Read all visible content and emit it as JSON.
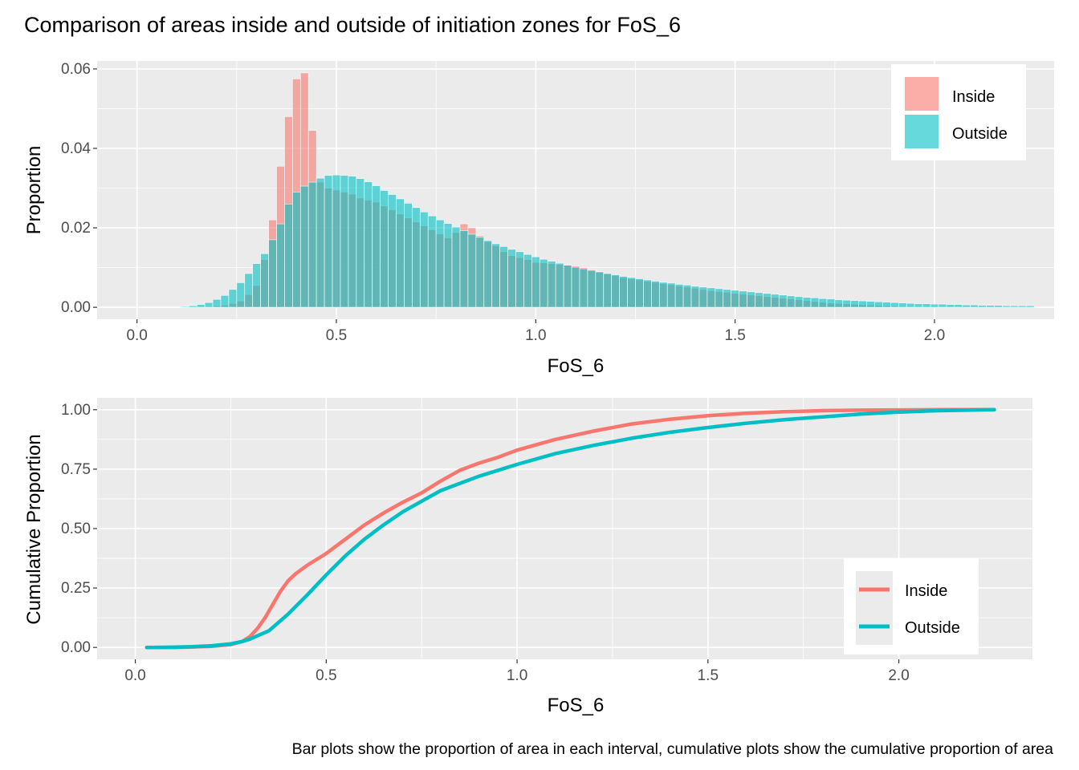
{
  "figure": {
    "title": "Comparison of areas inside and outside of initiation zones for FoS_6",
    "caption": "Bar plots show the proportion of area in each interval, cumulative plots show the cumulative proportion of area"
  },
  "colors": {
    "inside": "#F8766D",
    "outside": "#00BFC4",
    "panel": "#EBEBEB",
    "grid": "#FFFFFF"
  },
  "chart_data": [
    {
      "type": "bar",
      "xlabel": "FoS_6",
      "ylabel": "Proportion",
      "xlim": [
        -0.1,
        2.3
      ],
      "ylim": [
        -0.003,
        0.062
      ],
      "x_ticks": [
        "0.0",
        "0.5",
        "1.0",
        "1.5",
        "2.0"
      ],
      "x_tick_values": [
        0.0,
        0.5,
        1.0,
        1.5,
        2.0
      ],
      "y_ticks": [
        "0.00",
        "0.02",
        "0.04",
        "0.06"
      ],
      "y_tick_values": [
        0.0,
        0.02,
        0.04,
        0.06
      ],
      "grid": true,
      "legend_position": "top-right",
      "bin_width": 0.02,
      "bin_start": 0.11,
      "series": [
        {
          "name": "Inside",
          "color": "#F8766D",
          "values": [
            0.0,
            0.0,
            0.0,
            0.0002,
            0.0004,
            0.0006,
            0.001,
            0.0016,
            0.0032,
            0.0055,
            0.012,
            0.022,
            0.0355,
            0.048,
            0.0575,
            0.059,
            0.0445,
            0.0315,
            0.03,
            0.0295,
            0.029,
            0.0285,
            0.0275,
            0.027,
            0.0265,
            0.0255,
            0.0245,
            0.0235,
            0.0225,
            0.0215,
            0.0205,
            0.0195,
            0.0185,
            0.0175,
            0.0188,
            0.021,
            0.02,
            0.018,
            0.0165,
            0.0155,
            0.014,
            0.013,
            0.0125,
            0.012,
            0.0113,
            0.0112,
            0.011,
            0.0108,
            0.0106,
            0.0104,
            0.01,
            0.0095,
            0.009,
            0.0085,
            0.008,
            0.0075,
            0.0072,
            0.0069,
            0.0066,
            0.0063,
            0.006,
            0.0057,
            0.0054,
            0.0051,
            0.0048,
            0.0045,
            0.0042,
            0.004,
            0.0038,
            0.0035,
            0.0033,
            0.0031,
            0.0029,
            0.0027,
            0.0025,
            0.0023,
            0.0021,
            0.0019,
            0.0017,
            0.0015,
            0.0013,
            0.0011,
            0.001,
            0.0009,
            0.0008,
            0.0007,
            0.0006,
            0.0005,
            0.0004,
            0.0003,
            0.0002,
            0.0002,
            0.0001,
            0.0001,
            0.0001,
            0.0001,
            0.0001,
            0.0001,
            0.0001,
            0.0001,
            0.0001,
            0.0001,
            0.0001,
            0.0001,
            0.0001,
            0.0001,
            0.0001
          ]
        },
        {
          "name": "Outside",
          "color": "#00BFC4",
          "values": [
            0.0002,
            0.0004,
            0.0007,
            0.0012,
            0.002,
            0.003,
            0.0045,
            0.0062,
            0.0085,
            0.011,
            0.0135,
            0.017,
            0.021,
            0.026,
            0.029,
            0.0305,
            0.0315,
            0.0325,
            0.0332,
            0.0333,
            0.0332,
            0.033,
            0.0324,
            0.0316,
            0.0306,
            0.0294,
            0.0284,
            0.0273,
            0.0262,
            0.0251,
            0.024,
            0.023,
            0.022,
            0.0211,
            0.0202,
            0.0193,
            0.0184,
            0.0176,
            0.0168,
            0.016,
            0.0153,
            0.0146,
            0.014,
            0.0133,
            0.0127,
            0.0121,
            0.0116,
            0.0111,
            0.0106,
            0.0101,
            0.0097,
            0.0093,
            0.0089,
            0.0085,
            0.0082,
            0.0078,
            0.0075,
            0.0072,
            0.0069,
            0.0066,
            0.0063,
            0.0061,
            0.0058,
            0.0056,
            0.0053,
            0.0051,
            0.0049,
            0.0047,
            0.0045,
            0.0043,
            0.0041,
            0.0039,
            0.0037,
            0.0035,
            0.0033,
            0.0031,
            0.0029,
            0.0027,
            0.0025,
            0.0024,
            0.0022,
            0.0021,
            0.0019,
            0.0018,
            0.0017,
            0.0016,
            0.0015,
            0.0014,
            0.0013,
            0.0012,
            0.0011,
            0.001,
            0.0009,
            0.0009,
            0.0008,
            0.0008,
            0.0007,
            0.0007,
            0.0006,
            0.0006,
            0.0005,
            0.0005,
            0.0005,
            0.0004,
            0.0004,
            0.0004,
            0.0004
          ]
        }
      ]
    },
    {
      "type": "line",
      "xlabel": "FoS_6",
      "ylabel": "Cumulative Proportion",
      "xlim": [
        -0.1,
        2.35
      ],
      "ylim": [
        -0.05,
        1.05
      ],
      "x_ticks": [
        "0.0",
        "0.5",
        "1.0",
        "1.5",
        "2.0"
      ],
      "x_tick_values": [
        0.0,
        0.5,
        1.0,
        1.5,
        2.0
      ],
      "y_ticks": [
        "0.00",
        "0.25",
        "0.50",
        "0.75",
        "1.00"
      ],
      "y_tick_values": [
        0.0,
        0.25,
        0.5,
        0.75,
        1.0
      ],
      "grid": true,
      "legend_position": "bottom-right",
      "series": [
        {
          "name": "Inside",
          "color": "#F8766D",
          "x": [
            0.03,
            0.1,
            0.15,
            0.2,
            0.25,
            0.28,
            0.3,
            0.32,
            0.34,
            0.36,
            0.38,
            0.4,
            0.42,
            0.45,
            0.5,
            0.55,
            0.6,
            0.65,
            0.7,
            0.75,
            0.8,
            0.85,
            0.9,
            0.95,
            1.0,
            1.1,
            1.2,
            1.3,
            1.4,
            1.5,
            1.6,
            1.7,
            1.8,
            1.9,
            2.0,
            2.1,
            2.25
          ],
          "y": [
            0.0,
            0.0,
            0.002,
            0.005,
            0.012,
            0.025,
            0.045,
            0.08,
            0.125,
            0.18,
            0.235,
            0.28,
            0.31,
            0.345,
            0.395,
            0.455,
            0.515,
            0.565,
            0.61,
            0.65,
            0.7,
            0.745,
            0.775,
            0.8,
            0.83,
            0.875,
            0.91,
            0.94,
            0.96,
            0.975,
            0.985,
            0.992,
            0.996,
            0.998,
            0.999,
            1.0,
            1.0
          ]
        },
        {
          "name": "Outside",
          "color": "#00BFC4",
          "x": [
            0.03,
            0.1,
            0.15,
            0.2,
            0.25,
            0.28,
            0.3,
            0.35,
            0.4,
            0.45,
            0.5,
            0.55,
            0.6,
            0.65,
            0.7,
            0.75,
            0.8,
            0.9,
            1.0,
            1.1,
            1.2,
            1.3,
            1.4,
            1.5,
            1.6,
            1.7,
            1.8,
            1.9,
            2.0,
            2.1,
            2.25
          ],
          "y": [
            0.0,
            0.001,
            0.003,
            0.007,
            0.015,
            0.025,
            0.035,
            0.07,
            0.14,
            0.22,
            0.305,
            0.385,
            0.455,
            0.515,
            0.57,
            0.615,
            0.66,
            0.72,
            0.77,
            0.815,
            0.85,
            0.88,
            0.905,
            0.925,
            0.943,
            0.958,
            0.97,
            0.982,
            0.99,
            0.996,
            1.0
          ]
        }
      ]
    }
  ]
}
